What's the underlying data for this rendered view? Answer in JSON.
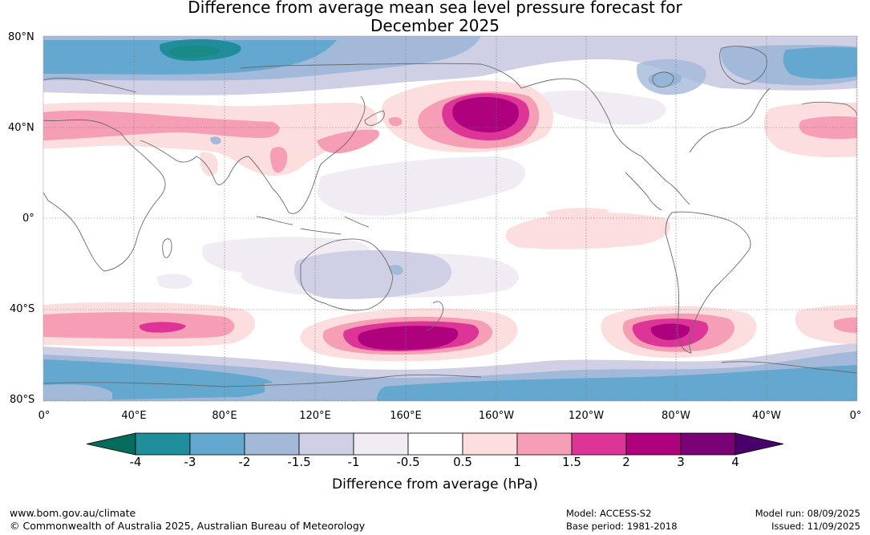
{
  "title": {
    "line1": "Difference from average mean sea level pressure forecast for",
    "line2": "December 2025"
  },
  "map": {
    "latitude_labels": [
      "80°N",
      "40°N",
      "0°",
      "40°S",
      "80°S"
    ],
    "longitude_labels": [
      "0°",
      "40°E",
      "80°E",
      "120°E",
      "160°E",
      "160°W",
      "120°W",
      "80°W",
      "40°W",
      "0°"
    ],
    "grid": "dotted",
    "anomaly_regions": [
      {
        "name": "north-pacific-high-anomaly",
        "center_lon": -165,
        "center_lat": 45,
        "peak_hpa": 3
      },
      {
        "name": "southern-ocean-high-anomaly-nz",
        "center_lon": 165,
        "center_lat": -52,
        "peak_hpa": 3
      },
      {
        "name": "southern-ocean-high-anomaly-south-america",
        "center_lon": -80,
        "center_lat": -48,
        "peak_hpa": 3
      },
      {
        "name": "southern-indian-ocean-anomaly",
        "center_lon": 50,
        "center_lat": -46,
        "peak_hpa": 2
      },
      {
        "name": "mediterranean-asia-band",
        "center_lon": 30,
        "center_lat": 38,
        "peak_hpa": 1.5
      },
      {
        "name": "north-atlantic-anomaly",
        "center_lon": -10,
        "center_lat": 40,
        "peak_hpa": 1.5
      },
      {
        "name": "scandinavia-low-anomaly",
        "center_lon": 70,
        "center_lat": 75,
        "peak_hpa": -4
      },
      {
        "name": "antarctic-low-anomaly",
        "center_lon": 0,
        "center_lat": -72,
        "peak_hpa": -3
      },
      {
        "name": "hudson-bay-low-anomaly",
        "center_lon": -85,
        "center_lat": 63,
        "peak_hpa": -3
      },
      {
        "name": "eastern-pacific-positive",
        "center_lon": -120,
        "center_lat": -5,
        "peak_hpa": 1
      },
      {
        "name": "australia-low-anomaly",
        "center_lon": 140,
        "center_lat": -25,
        "peak_hpa": -1.5
      }
    ]
  },
  "colorbar": {
    "boundaries": [
      "-4",
      "-3",
      "-2",
      "-1.5",
      "-1",
      "-0.5",
      "0.5",
      "1",
      "1.5",
      "2",
      "3",
      "4"
    ],
    "colors": [
      "#046c5c",
      "#1f8e9a",
      "#64a8d0",
      "#a2b9d9",
      "#cfd0e5",
      "#f1ecf4",
      "#ffffff",
      "#fcdede",
      "#f59eb5",
      "#dc3597",
      "#ad017d",
      "#7b0177",
      "#49006a"
    ],
    "label": "Difference from average (hPa)"
  },
  "footer": {
    "website": "www.bom.gov.au/climate",
    "copyright": "© Commonwealth of Australia 2025, Australian Bureau of Meteorology",
    "model": "Model: ACCESS-S2",
    "base_period": "Base period: 1981-2018",
    "model_run": "Model run: 08/09/2025",
    "issued": "Issued: 11/09/2025"
  }
}
